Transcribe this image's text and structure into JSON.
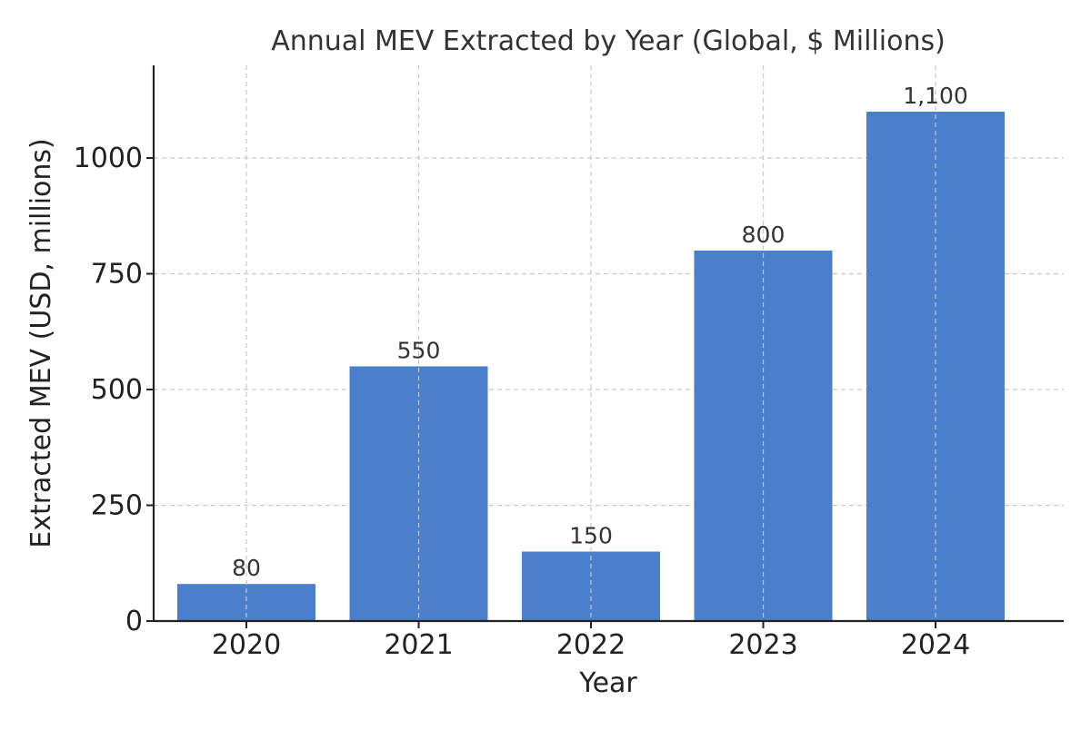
{
  "chart_data": {
    "type": "bar",
    "title": "Annual MEV Extracted by Year (Global, $ Millions)",
    "xlabel": "Year",
    "ylabel": "Extracted MEV (USD, millions)",
    "categories": [
      "2020",
      "2021",
      "2022",
      "2023",
      "2024"
    ],
    "values": [
      80,
      550,
      150,
      800,
      1100
    ],
    "data_labels": [
      "80",
      "550",
      "150",
      "800",
      "1,100"
    ],
    "y_ticks": [
      0,
      250,
      500,
      750,
      1000
    ],
    "ylim": [
      0,
      1200
    ],
    "grid": true,
    "bar_color": "#4a7fcc",
    "label_color": "#333333",
    "text_color": "#222222",
    "grid_color": "#c8c8c8"
  }
}
